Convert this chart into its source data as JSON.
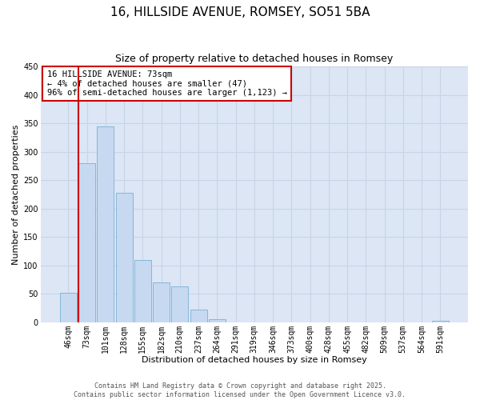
{
  "title": "16, HILLSIDE AVENUE, ROMSEY, SO51 5BA",
  "subtitle": "Size of property relative to detached houses in Romsey",
  "xlabel": "Distribution of detached houses by size in Romsey",
  "ylabel": "Number of detached properties",
  "bar_color": "#c6d9f1",
  "bar_edge_color": "#7bafd4",
  "categories": [
    "46sqm",
    "73sqm",
    "101sqm",
    "128sqm",
    "155sqm",
    "182sqm",
    "210sqm",
    "237sqm",
    "264sqm",
    "291sqm",
    "319sqm",
    "346sqm",
    "373sqm",
    "400sqm",
    "428sqm",
    "455sqm",
    "482sqm",
    "509sqm",
    "537sqm",
    "564sqm",
    "591sqm"
  ],
  "values": [
    52,
    280,
    345,
    228,
    110,
    70,
    63,
    22,
    6,
    0,
    0,
    0,
    0,
    0,
    0,
    0,
    0,
    0,
    0,
    0,
    2
  ],
  "ylim": [
    0,
    450
  ],
  "yticks": [
    0,
    50,
    100,
    150,
    200,
    250,
    300,
    350,
    400,
    450
  ],
  "annotation_title": "16 HILLSIDE AVENUE: 73sqm",
  "annotation_line2": "← 4% of detached houses are smaller (47)",
  "annotation_line3": "96% of semi-detached houses are larger (1,123) →",
  "annotation_box_color": "#ffffff",
  "annotation_box_edge": "#cc0000",
  "vline_color": "#cc0000",
  "grid_color": "#c8d4e8",
  "bg_color": "#dce6f5",
  "footnote1": "Contains HM Land Registry data © Crown copyright and database right 2025.",
  "footnote2": "Contains public sector information licensed under the Open Government Licence v3.0.",
  "title_fontsize": 11,
  "subtitle_fontsize": 9,
  "label_fontsize": 8,
  "tick_fontsize": 7,
  "annot_fontsize": 7.5,
  "footnote_fontsize": 6
}
